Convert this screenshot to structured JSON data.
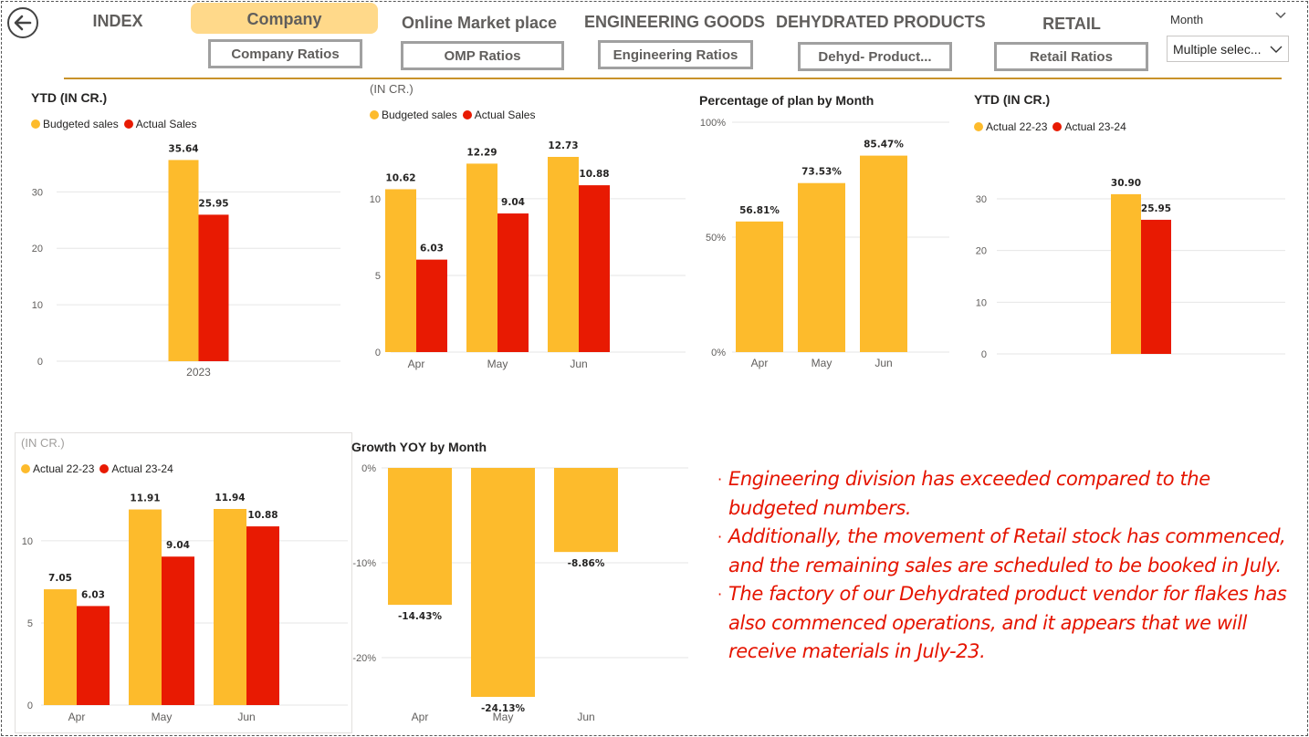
{
  "nav": {
    "index": "INDEX",
    "company": "Company",
    "omp": "Online Market place",
    "engineering": "ENGINEERING GOODS",
    "dehydrated": "DEHYDRATED PRODUCTS",
    "retail": "RETAIL"
  },
  "subnav": {
    "company_ratios": "Company Ratios",
    "omp_ratios": "OMP Ratios",
    "engineering_ratios": "Engineering Ratios",
    "dehyd_ratios": "Dehyd- Product...",
    "retail_ratios": "Retail Ratios"
  },
  "slicer": {
    "title": "Month",
    "value": "Multiple selec..."
  },
  "colors": {
    "budget": "#fdbb2c",
    "actual": "#e81a02",
    "accent": "#c8922a",
    "note_red": "#e51400"
  },
  "charts": [
    {
      "title": "YTD (IN CR.)",
      "chart_data": {
        "type": "bar",
        "categories": [
          "2023"
        ],
        "series": [
          {
            "name": "Budgeted sales",
            "values": [
              35.64
            ]
          },
          {
            "name": "Actual Sales",
            "values": [
              25.95
            ]
          }
        ],
        "data_labels": [
          [
            "35.64"
          ],
          [
            "25.95"
          ]
        ],
        "yticks": [
          "0",
          "10",
          "20",
          "30"
        ],
        "ylim": [
          0,
          37
        ],
        "legend": "top-left",
        "grid": true
      }
    },
    {
      "title": "(IN CR.)",
      "chart_data": {
        "type": "bar",
        "categories": [
          "Apr",
          "May",
          "Jun"
        ],
        "series": [
          {
            "name": "Budgeted sales",
            "values": [
              10.62,
              12.29,
              12.73
            ]
          },
          {
            "name": "Actual Sales",
            "values": [
              6.03,
              9.04,
              10.88
            ]
          }
        ],
        "data_labels": [
          [
            "10.62",
            "12.29",
            "12.73"
          ],
          [
            "6.03",
            "9.04",
            "10.88"
          ]
        ],
        "yticks": [
          "0",
          "5",
          "10"
        ],
        "ylim": [
          0,
          12.73
        ],
        "legend": "top-left",
        "grid": true
      }
    },
    {
      "title": "Percentage of plan by Month",
      "chart_data": {
        "type": "bar",
        "categories": [
          "Apr",
          "May",
          "Jun"
        ],
        "series": [
          {
            "values": [
              56.81,
              73.53,
              85.47
            ]
          }
        ],
        "data_labels": [
          [
            "56.81%",
            "73.53%",
            "85.47%"
          ]
        ],
        "yticks": [
          "0%",
          "50%",
          "100%"
        ],
        "ylim": [
          0,
          100
        ],
        "legend": "none",
        "grid": true
      }
    },
    {
      "title": "YTD (IN CR.)",
      "chart_data": {
        "type": "bar",
        "categories": [
          ""
        ],
        "series": [
          {
            "name": "Actual 22-23",
            "values": [
              30.9
            ]
          },
          {
            "name": "Actual 23-24",
            "values": [
              25.95
            ]
          }
        ],
        "data_labels": [
          [
            "30.90"
          ],
          [
            "25.95"
          ]
        ],
        "yticks": [
          "0",
          "10",
          "20",
          "30"
        ],
        "ylim": [
          0,
          36
        ],
        "legend": "top-left",
        "grid": true
      }
    },
    {
      "title": "(IN CR.)",
      "chart_data": {
        "type": "bar",
        "categories": [
          "Apr",
          "May",
          "Jun"
        ],
        "series": [
          {
            "name": "Actual 22-23",
            "values": [
              7.05,
              11.91,
              11.94
            ]
          },
          {
            "name": "Actual 23-24",
            "values": [
              6.03,
              9.04,
              10.88
            ]
          }
        ],
        "data_labels": [
          [
            "7.05",
            "11.91",
            "11.94"
          ],
          [
            "6.03",
            "9.04",
            "10.88"
          ]
        ],
        "yticks": [
          "0",
          "5",
          "10"
        ],
        "ylim": [
          0,
          11.94
        ],
        "legend": "top-left",
        "grid": true
      }
    },
    {
      "title": "Growth YOY by Month",
      "chart_data": {
        "type": "bar",
        "categories": [
          "Apr",
          "May",
          "Jun"
        ],
        "series": [
          {
            "values": [
              -14.43,
              -24.13,
              -8.86
            ]
          }
        ],
        "data_labels": [
          [
            "-14.43%",
            "-24.13%",
            "-8.86%"
          ]
        ],
        "yticks": [
          "0%",
          "-10%",
          "-20%"
        ],
        "ylim": [
          -24.13,
          0
        ],
        "legend": "none",
        "grid": true
      }
    }
  ],
  "notes": [
    "Engineering division  has exceeded  compared to the budgeted numbers.",
    " Additionally, the movement of Retail stock has commenced, and the remaining sales are scheduled to be booked in July.",
    "The factory of our Dehydrated product vendor for flakes has also commenced operations, and it appears that we will receive materials in July-23."
  ]
}
